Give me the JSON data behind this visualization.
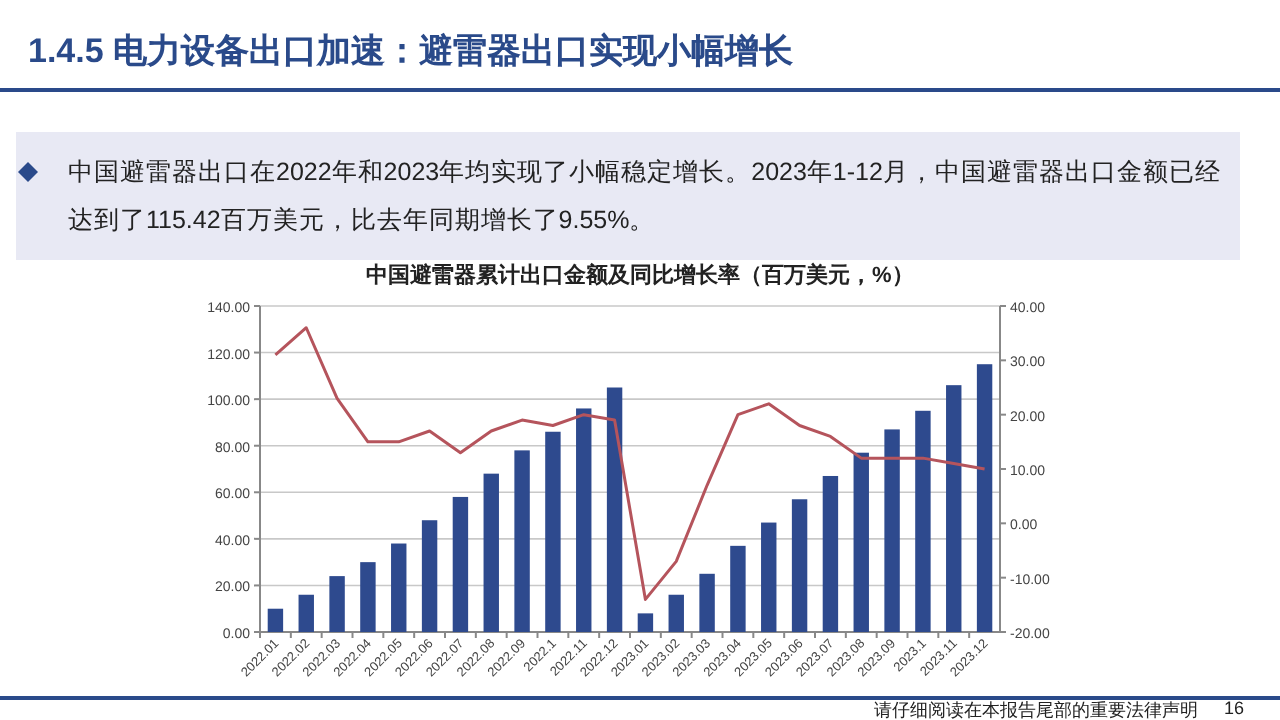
{
  "chart_data": {
    "type": "bar",
    "title": "1.4.5 电力设备出口加速：避雷器出口实现小幅增长",
    "subtitle": "中国避雷器出口在2022年和2023年均实现了小幅稳定增长。2023年1-12月，中国避雷器出口金额已经达到了115.42百万美元，比去年同期增长了9.55%。",
    "annotations": [
      "中国避雷器累计出口金额及同比增长率（百万美元，%）",
      "请仔细阅读在本报告尾部的重要法律声明",
      "16"
    ],
    "categories": [
      "2022.01",
      "2022.02",
      "2022.03",
      "2022.04",
      "2022.05",
      "2022.06",
      "2022.07",
      "2022.08",
      "2022.09",
      "2022.1",
      "2022.11",
      "2022.12",
      "2023.01",
      "2023.02",
      "2023.03",
      "2023.04",
      "2023.05",
      "2023.06",
      "2023.07",
      "2023.08",
      "2023.09",
      "2023.1",
      "2023.11",
      "2023.12"
    ],
    "series": [
      {
        "color": "#2e4a8e",
        "values": [
          10,
          16,
          24,
          30,
          38,
          48,
          58,
          68,
          78,
          86,
          96,
          105,
          8,
          16,
          25,
          37,
          47,
          57,
          67,
          77,
          87,
          95,
          106,
          115
        ]
      },
      {
        "type": "line",
        "axis": "y2",
        "color": "#b5545c",
        "values": [
          31,
          36,
          23,
          15,
          15,
          17,
          13,
          17,
          19,
          18,
          20,
          19,
          -14,
          -7,
          7,
          20,
          22,
          18,
          16,
          12,
          12,
          12,
          11,
          10
        ]
      }
    ],
    "ylim": [
      0,
      140
    ],
    "yticks": [
      {
        "value": 0,
        "label": "0.00"
      },
      {
        "value": 20,
        "label": "20.00"
      },
      {
        "value": 40,
        "label": "40.00"
      },
      {
        "value": 60,
        "label": "60.00"
      },
      {
        "value": 80,
        "label": "80.00"
      },
      {
        "value": 100,
        "label": "100.00"
      },
      {
        "value": 120,
        "label": "120.00"
      },
      {
        "value": 140,
        "label": "140.00"
      }
    ],
    "y2lim": [
      -20,
      40
    ],
    "y2ticks": [
      {
        "value": -20,
        "label": "-20.00"
      },
      {
        "value": -10,
        "label": "-10.00"
      },
      {
        "value": 0,
        "label": "0.00"
      },
      {
        "value": 10,
        "label": "10.00"
      },
      {
        "value": 20,
        "label": "20.00"
      },
      {
        "value": 30,
        "label": "30.00"
      },
      {
        "value": 40,
        "label": "40.00"
      }
    ],
    "grid": "y"
  }
}
